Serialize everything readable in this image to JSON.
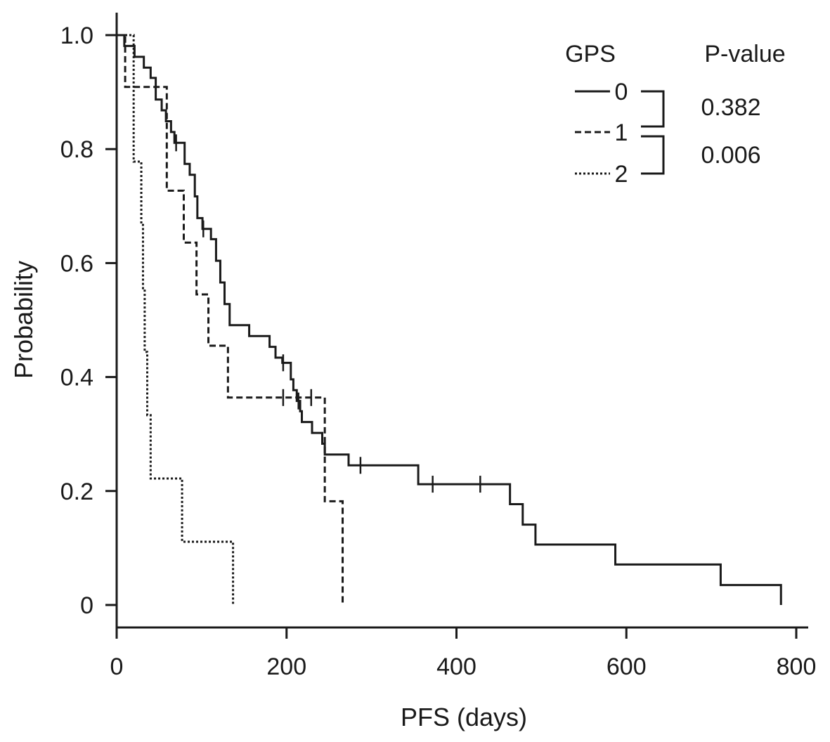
{
  "chart_data": {
    "type": "line",
    "subtype": "kaplan-meier",
    "title": "",
    "xlabel": "PFS (days)",
    "ylabel": "Probability",
    "xlim": [
      0,
      800
    ],
    "ylim": [
      0,
      1.0
    ],
    "xticks": [
      0,
      200,
      400,
      600,
      800
    ],
    "xtick_labels": [
      "0",
      "200",
      "400",
      "600",
      "800"
    ],
    "yticks": [
      0,
      0.2,
      0.4,
      0.6,
      0.8,
      1.0
    ],
    "ytick_labels": [
      "0",
      "0.2",
      "0.4",
      "0.6",
      "0.8",
      "1.0"
    ],
    "grid": false,
    "legend": {
      "title": "GPS",
      "placement": "top-right",
      "pvalue_title": "P-value",
      "pvalues": [
        {
          "between": [
            "0",
            "1"
          ],
          "value": "0.382"
        },
        {
          "between": [
            "1",
            "2"
          ],
          "value": "0.006"
        }
      ]
    },
    "series": [
      {
        "name": "0",
        "style": "solid",
        "steps": [
          [
            0,
            1.0
          ],
          [
            9,
            0.981
          ],
          [
            21,
            0.962
          ],
          [
            32,
            0.943
          ],
          [
            40,
            0.925
          ],
          [
            46,
            0.887
          ],
          [
            53,
            0.868
          ],
          [
            58,
            0.849
          ],
          [
            64,
            0.83
          ],
          [
            68,
            0.811
          ],
          [
            80,
            0.774
          ],
          [
            86,
            0.755
          ],
          [
            92,
            0.717
          ],
          [
            95,
            0.679
          ],
          [
            101,
            0.66
          ],
          [
            111,
            0.642
          ],
          [
            117,
            0.604
          ],
          [
            122,
            0.566
          ],
          [
            127,
            0.528
          ],
          [
            133,
            0.491
          ],
          [
            156,
            0.472
          ],
          [
            180,
            0.453
          ],
          [
            187,
            0.434
          ],
          [
            195,
            0.425
          ],
          [
            205,
            0.396
          ],
          [
            208,
            0.377
          ],
          [
            212,
            0.358
          ],
          [
            216,
            0.34
          ],
          [
            218,
            0.321
          ],
          [
            230,
            0.302
          ],
          [
            242,
            0.283
          ],
          [
            245,
            0.264
          ],
          [
            273,
            0.245
          ],
          [
            355,
            0.212
          ],
          [
            463,
            0.177
          ],
          [
            478,
            0.141
          ],
          [
            493,
            0.106
          ],
          [
            587,
            0.071
          ],
          [
            711,
            0.035
          ],
          [
            782,
            0.0
          ]
        ],
        "censored": [
          70,
          102,
          196,
          214,
          287,
          372,
          428
        ]
      },
      {
        "name": "1",
        "style": "dashed",
        "steps": [
          [
            0,
            1.0
          ],
          [
            10,
            0.909
          ],
          [
            59,
            0.727
          ],
          [
            79,
            0.636
          ],
          [
            94,
            0.545
          ],
          [
            108,
            0.455
          ],
          [
            131,
            0.364
          ],
          [
            245,
            0.182
          ],
          [
            266,
            0.0
          ]
        ],
        "censored": [
          196,
          229
        ]
      },
      {
        "name": "2",
        "style": "dotted",
        "steps": [
          [
            0,
            1.0
          ],
          [
            20,
            0.778
          ],
          [
            29,
            0.667
          ],
          [
            31,
            0.556
          ],
          [
            33,
            0.444
          ],
          [
            36,
            0.333
          ],
          [
            40,
            0.222
          ],
          [
            77,
            0.111
          ],
          [
            137,
            0.0
          ]
        ],
        "censored": []
      }
    ]
  }
}
